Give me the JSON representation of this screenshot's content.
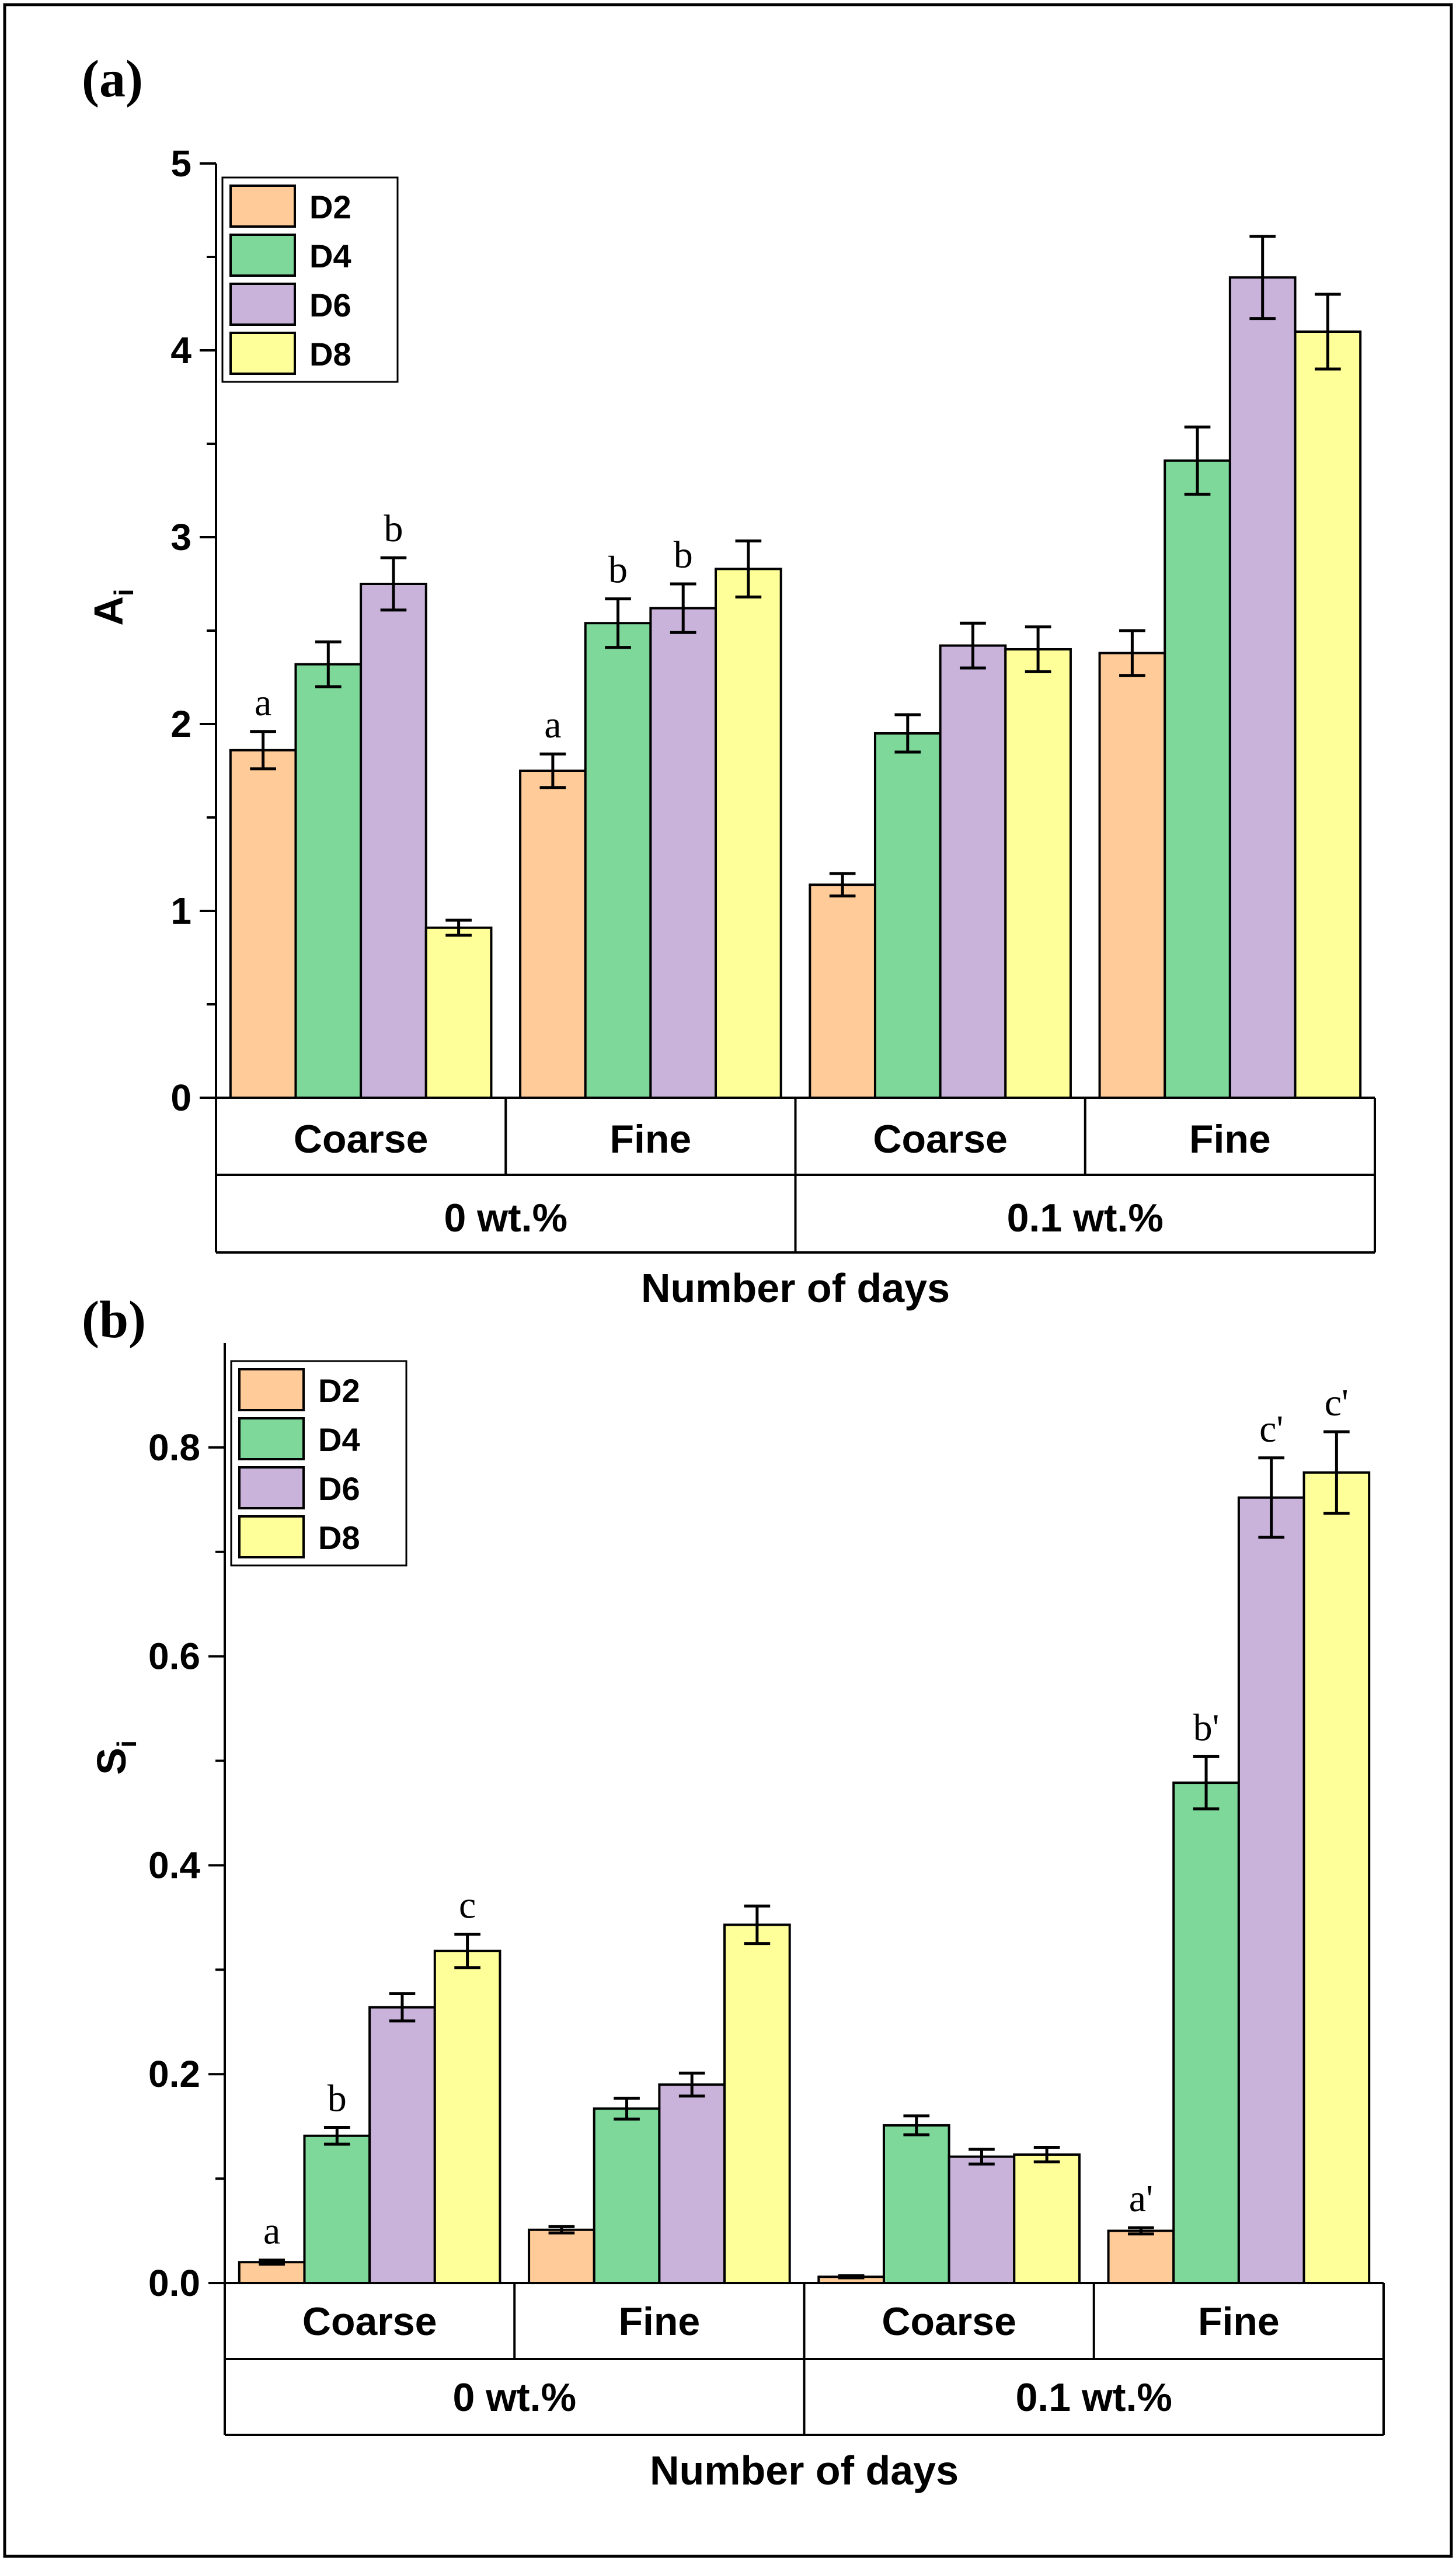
{
  "colors": {
    "D2": "#FFCC99",
    "D4": "#7ED89A",
    "D6": "#C9B3DB",
    "D8": "#FFFF99"
  },
  "chart_data": [
    {
      "type": "bar",
      "panel": "(a)",
      "ylabel": "A",
      "ylabel_sub": "i",
      "xlabel": "Number of days",
      "ylim": [
        0,
        5
      ],
      "yticks": [
        0,
        1,
        2,
        3,
        4,
        5
      ],
      "ytick_labels": [
        "0",
        "1",
        "2",
        "3",
        "4",
        "5"
      ],
      "categories": [
        "Coarse",
        "Fine",
        "Coarse",
        "Fine"
      ],
      "groups": [
        "0 wt.%",
        "0.1 wt.%"
      ],
      "series": [
        {
          "name": "D2",
          "values": [
            1.86,
            1.75,
            1.14,
            2.38
          ],
          "errors": [
            0.1,
            0.09,
            0.06,
            0.12
          ],
          "labels": [
            "a",
            "a",
            "",
            ""
          ]
        },
        {
          "name": "D4",
          "values": [
            2.32,
            2.54,
            1.95,
            3.41
          ],
          "errors": [
            0.12,
            0.13,
            0.1,
            0.18
          ],
          "labels": [
            "",
            "b",
            "",
            ""
          ]
        },
        {
          "name": "D6",
          "values": [
            2.75,
            2.62,
            2.42,
            4.39
          ],
          "errors": [
            0.14,
            0.13,
            0.12,
            0.22
          ],
          "labels": [
            "b",
            "b",
            "",
            ""
          ]
        },
        {
          "name": "D8",
          "values": [
            0.91,
            2.83,
            2.4,
            4.1
          ],
          "errors": [
            0.04,
            0.15,
            0.12,
            0.2
          ],
          "labels": [
            "",
            "",
            "",
            ""
          ]
        }
      ],
      "legend": [
        "D2",
        "D4",
        "D6",
        "D8"
      ]
    },
    {
      "type": "bar",
      "panel": "(b)",
      "ylabel": "S",
      "ylabel_sub": "i",
      "xlabel": "Number of days",
      "ylim": [
        0,
        0.9
      ],
      "yticks": [
        0,
        0.2,
        0.4,
        0.6,
        0.8
      ],
      "ytick_labels": [
        "0.0",
        "0.2",
        "0.4",
        "0.6",
        "0.8"
      ],
      "categories": [
        "Coarse",
        "Fine",
        "Coarse",
        "Fine"
      ],
      "groups": [
        "0 wt.%",
        "0.1 wt.%"
      ],
      "series": [
        {
          "name": "D2",
          "values": [
            0.02,
            0.051,
            0.006,
            0.05
          ],
          "errors": [
            0.002,
            0.003,
            0.001,
            0.003
          ],
          "labels": [
            "a",
            "",
            "",
            "a'"
          ]
        },
        {
          "name": "D4",
          "values": [
            0.141,
            0.167,
            0.151,
            0.479
          ],
          "errors": [
            0.008,
            0.01,
            0.009,
            0.025
          ],
          "labels": [
            "b",
            "",
            "",
            "b'"
          ]
        },
        {
          "name": "D6",
          "values": [
            0.264,
            0.19,
            0.121,
            0.752
          ],
          "errors": [
            0.013,
            0.011,
            0.007,
            0.038
          ],
          "labels": [
            "",
            "",
            "",
            "c'"
          ]
        },
        {
          "name": "D8",
          "values": [
            0.318,
            0.343,
            0.123,
            0.776
          ],
          "errors": [
            0.016,
            0.018,
            0.007,
            0.039
          ],
          "labels": [
            "c",
            "",
            "",
            "c'"
          ]
        }
      ],
      "legend": [
        "D2",
        "D4",
        "D6",
        "D8"
      ]
    }
  ]
}
